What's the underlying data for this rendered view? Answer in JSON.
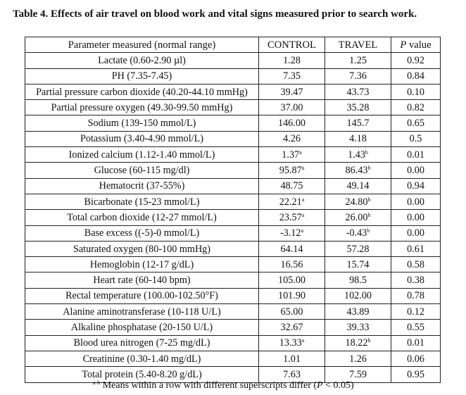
{
  "caption": "Table 4. Effects of air travel on blood work and vital signs measured prior to search work.",
  "headers": {
    "param": "Parameter measured (normal range)",
    "control": "CONTROL",
    "travel": "TRAVEL",
    "p_letter": "P",
    "p_rest": " value"
  },
  "rows": [
    {
      "param": "Lactate (0.60-2.90 µl)",
      "control": "1.28",
      "control_sup": "",
      "travel": "1.25",
      "travel_sup": "",
      "p": "0.92"
    },
    {
      "param": "PH (7.35-7.45)",
      "control": "7.35",
      "control_sup": "",
      "travel": "7.36",
      "travel_sup": "",
      "p": "0.84"
    },
    {
      "param": "Partial pressure carbon dioxide (40.20-44.10 mmHg)",
      "control": "39.47",
      "control_sup": "",
      "travel": "43.73",
      "travel_sup": "",
      "p": "0.10"
    },
    {
      "param": "Partial pressure oxygen (49.30-99.50 mmHg)",
      "control": "37.00",
      "control_sup": "",
      "travel": "35.28",
      "travel_sup": "",
      "p": "0.82"
    },
    {
      "param": "Sodium (139-150 mmol/L)",
      "control": "146.00",
      "control_sup": "",
      "travel": "145.7",
      "travel_sup": "",
      "p": "0.65"
    },
    {
      "param": "Potassium (3.40-4.90 mmol/L)",
      "control": "4.26",
      "control_sup": "",
      "travel": "4.18",
      "travel_sup": "",
      "p": "0.5"
    },
    {
      "param": "Ionized calcium (1.12-1.40 mmol/L)",
      "control": "1.37",
      "control_sup": "a",
      "travel": "1.43",
      "travel_sup": "b",
      "p": "0.01"
    },
    {
      "param": "Glucose (60-115 mg/dl)",
      "control": "95.87",
      "control_sup": "a",
      "travel": "86.43",
      "travel_sup": "b",
      "p": "0.00"
    },
    {
      "param": "Hematocrit (37-55%)",
      "control": "48.75",
      "control_sup": "",
      "travel": "49.14",
      "travel_sup": "",
      "p": "0.94"
    },
    {
      "param": "Bicarbonate (15-23 mmol/L)",
      "control": "22.21",
      "control_sup": "a",
      "travel": "24.80",
      "travel_sup": "b",
      "p": "0.00"
    },
    {
      "param": "Total carbon dioxide (12-27 mmol/L)",
      "control": "23.57",
      "control_sup": "a",
      "travel": "26.00",
      "travel_sup": "b",
      "p": "0.00"
    },
    {
      "param": "Base excess ((-5)-0 mmol/L)",
      "control": "-3.12",
      "control_sup": "a",
      "travel": "-0.43",
      "travel_sup": "b",
      "p": "0.00"
    },
    {
      "param": "Saturated oxygen (80-100 mmHg)",
      "control": "64.14",
      "control_sup": "",
      "travel": "57.28",
      "travel_sup": "",
      "p": "0.61"
    },
    {
      "param": "Hemoglobin (12-17 g/dL)",
      "control": "16.56",
      "control_sup": "",
      "travel": "15.74",
      "travel_sup": "",
      "p": "0.58"
    },
    {
      "param": "Heart rate (60-140 bpm)",
      "control": "105.00",
      "control_sup": "",
      "travel": "98.5",
      "travel_sup": "",
      "p": "0.38"
    },
    {
      "param": "Rectal temperature (100.00-102.50°F)",
      "control": "101.90",
      "control_sup": "",
      "travel": "102.00",
      "travel_sup": "",
      "p": "0.78"
    },
    {
      "param": "Alanine aminotransferase  (10-118 U/L)",
      "control": "65.00",
      "control_sup": "",
      "travel": "43.89",
      "travel_sup": "",
      "p": "0.12"
    },
    {
      "param": "Alkaline phosphatase (20-150 U/L)",
      "control": "32.67",
      "control_sup": "",
      "travel": "39.33",
      "travel_sup": "",
      "p": "0.55"
    },
    {
      "param": "Blood urea nitrogen (7-25 mg/dL)",
      "control": "13.33",
      "control_sup": "a",
      "travel": "18.22",
      "travel_sup": "b",
      "p": "0.01"
    },
    {
      "param": "Creatinine (0.30-1.40 mg/dL)",
      "control": "1.01",
      "control_sup": "",
      "travel": "1.26",
      "travel_sup": "",
      "p": "0.06"
    },
    {
      "param": "Total protein (5.40-8.20 g/dL)",
      "control": "7.63",
      "control_sup": "",
      "travel": "7.59",
      "travel_sup": "",
      "p": "0.95"
    }
  ],
  "footnote": {
    "sup": "a-b",
    "text_before": " Means within a row with different superscripts differ (",
    "p_letter": "P",
    "text_after": " < 0.05)"
  }
}
